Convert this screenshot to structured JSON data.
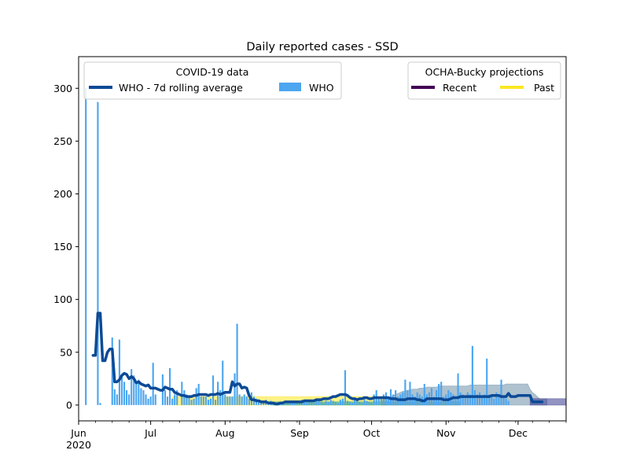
{
  "chart_data": {
    "type": "bar",
    "title": "Daily reported cases - SSD",
    "xlabel": "",
    "ylabel": "",
    "ylim": [
      -15,
      330
    ],
    "xlim": [
      "2020-06-01",
      "2020-12-21"
    ],
    "yticks": [
      0,
      50,
      100,
      150,
      200,
      250,
      300
    ],
    "xticks": [
      {
        "date": "2020-06-01",
        "label": "Jun",
        "sublabel": "2020"
      },
      {
        "date": "2020-07-01",
        "label": "Jul",
        "sublabel": ""
      },
      {
        "date": "2020-08-01",
        "label": "Aug",
        "sublabel": ""
      },
      {
        "date": "2020-09-01",
        "label": "Sep",
        "sublabel": ""
      },
      {
        "date": "2020-10-01",
        "label": "Oct",
        "sublabel": ""
      },
      {
        "date": "2020-11-01",
        "label": "Nov",
        "sublabel": ""
      },
      {
        "date": "2020-12-01",
        "label": "Dec",
        "sublabel": ""
      }
    ],
    "legends": [
      {
        "title": "COVID-19 data",
        "placement": "upper-left",
        "entries": [
          {
            "label": "WHO - 7d rolling average",
            "kind": "line",
            "color": "#0b4a96"
          },
          {
            "label": "WHO",
            "kind": "patch",
            "color": "#4ca6f0"
          }
        ]
      },
      {
        "title": "OCHA-Bucky projections",
        "placement": "upper-right",
        "entries": [
          {
            "label": "Recent",
            "kind": "line",
            "color": "#440154"
          },
          {
            "label": "Past",
            "kind": "line",
            "color": "#fde725"
          }
        ]
      }
    ],
    "series": [
      {
        "name": "WHO",
        "kind": "bar",
        "color": "#4ca6f0",
        "start": "2020-06-01",
        "values": [
          0,
          0,
          0,
          300,
          0,
          0,
          0,
          0,
          287,
          2,
          0,
          0,
          0,
          0,
          64,
          15,
          10,
          62,
          28,
          22,
          14,
          10,
          34,
          28,
          20,
          24,
          16,
          14,
          10,
          6,
          8,
          40,
          10,
          0,
          0,
          29,
          14,
          8,
          35,
          6,
          10,
          14,
          0,
          22,
          14,
          10,
          8,
          5,
          6,
          16,
          20,
          8,
          8,
          8,
          5,
          6,
          28,
          5,
          22,
          14,
          42,
          10,
          8,
          8,
          8,
          30,
          77,
          10,
          8,
          10,
          8,
          6,
          12,
          8,
          6,
          5,
          4,
          3,
          5,
          2,
          4,
          3,
          2,
          2,
          1,
          3,
          2,
          4,
          2,
          3,
          2,
          4,
          3,
          5,
          3,
          2,
          4,
          3,
          2,
          5,
          4,
          3,
          2,
          4,
          3,
          5,
          4,
          3,
          2,
          5,
          6,
          33,
          4,
          3,
          2,
          5,
          4,
          3,
          2,
          6,
          4,
          3,
          2,
          10,
          14,
          6,
          8,
          10,
          12,
          8,
          15,
          10,
          14,
          8,
          10,
          12,
          24,
          14,
          22,
          10,
          8,
          12,
          10,
          8,
          20,
          10,
          12,
          16,
          8,
          14,
          20,
          22,
          8,
          10,
          14,
          12,
          10,
          8,
          30,
          12,
          10,
          8,
          12,
          10,
          56,
          14,
          10,
          12,
          8,
          10,
          44,
          10,
          8,
          6,
          12,
          8,
          24,
          8,
          6,
          4
        ]
      },
      {
        "name": "WHO - 7d rolling average",
        "kind": "line",
        "color": "#0b4a96",
        "start": "2020-06-01",
        "values": [
          null,
          null,
          null,
          null,
          null,
          null,
          47,
          47,
          87,
          87,
          42,
          42,
          50,
          53,
          53,
          22,
          22,
          24,
          28,
          30,
          29,
          25,
          27,
          25,
          21,
          22,
          20,
          19,
          18,
          19,
          16,
          16,
          16,
          15,
          14,
          14,
          17,
          16,
          15,
          15,
          12,
          11,
          10,
          9,
          9,
          8,
          8,
          8,
          9,
          9,
          10,
          10,
          10,
          10,
          9,
          10,
          10,
          10,
          11,
          10,
          11,
          12,
          12,
          12,
          22,
          18,
          20,
          20,
          16,
          17,
          16,
          9,
          5,
          5,
          4,
          4,
          3,
          3,
          3,
          2,
          2,
          2,
          1,
          1,
          2,
          2,
          3,
          3,
          3,
          3,
          3,
          3,
          3,
          3,
          4,
          4,
          4,
          4,
          4,
          5,
          5,
          5,
          6,
          6,
          6,
          7,
          8,
          8,
          9,
          10,
          10,
          10,
          9,
          7,
          6,
          6,
          5,
          6,
          6,
          7,
          7,
          6,
          6,
          7,
          7,
          7,
          7,
          7,
          7,
          7,
          6,
          6,
          6,
          5,
          5,
          5,
          5,
          6,
          6,
          6,
          6,
          5,
          5,
          4,
          4,
          6,
          6,
          6,
          6,
          6,
          6,
          6,
          5,
          5,
          5,
          6,
          7,
          7,
          7,
          8,
          8,
          8,
          8,
          8,
          8,
          8,
          8,
          8,
          8,
          8,
          8,
          8,
          9,
          9,
          9,
          9,
          8,
          8,
          8,
          11,
          8,
          8,
          8,
          9,
          9,
          9,
          9,
          9,
          9,
          3,
          3,
          3,
          3,
          3
        ]
      },
      {
        "name": "",
        "kind": "band",
        "color": "#fde725",
        "start": "2020-07-10",
        "lower": [
          0,
          0,
          0,
          0,
          0,
          0,
          0,
          0,
          0,
          0,
          0,
          0,
          0,
          0,
          0,
          0,
          0,
          0,
          0,
          0,
          0,
          0,
          0,
          0,
          0,
          0,
          0,
          0,
          0,
          0,
          0,
          0,
          0,
          0,
          0,
          0,
          0,
          0,
          0,
          0,
          0,
          0,
          0,
          0,
          0,
          0,
          0,
          0,
          0,
          0,
          0,
          0,
          0,
          0,
          0,
          0,
          0,
          0,
          0,
          0,
          0,
          0,
          0,
          0,
          0,
          0,
          0,
          0,
          0,
          0,
          0,
          0,
          0,
          0,
          0,
          0,
          0,
          0,
          0,
          0,
          0,
          0,
          0,
          0,
          0,
          0,
          0,
          0,
          0,
          0
        ],
        "upper": [
          8,
          8,
          8,
          8,
          8,
          8,
          8,
          8,
          8,
          8,
          8,
          8,
          8,
          8,
          8,
          8,
          8,
          8,
          8,
          8,
          8,
          8,
          8,
          8,
          8,
          8,
          8,
          8,
          8,
          8,
          8,
          8,
          8,
          8,
          8,
          8,
          8,
          8,
          8,
          8,
          8,
          8,
          8,
          8,
          8,
          8,
          8,
          8,
          8,
          8,
          8,
          8,
          8,
          8,
          8,
          8,
          8,
          8,
          8,
          8,
          8,
          8,
          8,
          8,
          8,
          8,
          8,
          8,
          8,
          8,
          8,
          8,
          8,
          8,
          8,
          8,
          8,
          8,
          8,
          8,
          8,
          8,
          8,
          8,
          8,
          8,
          8,
          8,
          8,
          8
        ]
      },
      {
        "name": "",
        "kind": "band",
        "color": "#21a585",
        "start": "2020-08-20",
        "lower": [
          0,
          0,
          0,
          0,
          0,
          0,
          0,
          0,
          0,
          0,
          0,
          0,
          0,
          0,
          0,
          0,
          0,
          0,
          0,
          0,
          0,
          0,
          0,
          0,
          0,
          0,
          0,
          0,
          0,
          0,
          0,
          0,
          0,
          0,
          0,
          0,
          0,
          0,
          0,
          0,
          0,
          0,
          0,
          0,
          0,
          0,
          0,
          0,
          0,
          0,
          0,
          0,
          0,
          0,
          0,
          0,
          0,
          0,
          0,
          0,
          0,
          0,
          0,
          0,
          0,
          0,
          0,
          0,
          0,
          0,
          0,
          0,
          0,
          0,
          0,
          0,
          0,
          0,
          0,
          0
        ],
        "upper": [
          3,
          3,
          3,
          3,
          3,
          3,
          3,
          3,
          3,
          3,
          3,
          3,
          3,
          3,
          3,
          3,
          3,
          3,
          3,
          3,
          3,
          3,
          3,
          3,
          3,
          3,
          3,
          3,
          3,
          3,
          3,
          3,
          3,
          3,
          3,
          3,
          3,
          3,
          3,
          3,
          3,
          3,
          3,
          3,
          3,
          3,
          3,
          3,
          3,
          3,
          3,
          3,
          3,
          3,
          3,
          3,
          3,
          3,
          3,
          3,
          3,
          3,
          3,
          3,
          3,
          3,
          3,
          3,
          3,
          3,
          3,
          3,
          3,
          3,
          3,
          3,
          3,
          3,
          3,
          3
        ]
      },
      {
        "name": "",
        "kind": "band",
        "color": "#6b8fa8",
        "start": "2020-10-05",
        "lower": [
          0,
          0,
          0,
          0,
          0,
          0,
          0,
          0,
          0,
          0,
          0,
          0,
          0,
          0,
          0,
          0,
          0,
          0,
          0,
          0,
          0,
          0,
          0,
          0,
          0,
          0,
          0,
          0,
          0,
          0,
          0,
          0,
          0,
          0,
          0,
          0,
          0,
          0,
          0,
          0,
          0,
          0,
          0,
          0,
          0,
          0,
          0,
          0,
          0,
          0,
          0,
          0,
          0,
          0,
          0,
          0,
          0,
          0,
          0,
          0,
          0,
          0,
          0,
          0,
          0,
          0,
          0,
          0,
          0,
          0
        ],
        "upper": [
          4,
          5,
          6,
          7,
          8,
          9,
          10,
          11,
          12,
          13,
          13,
          14,
          14,
          15,
          15,
          15,
          16,
          16,
          16,
          17,
          17,
          17,
          17,
          17,
          18,
          18,
          18,
          18,
          18,
          18,
          18,
          18,
          18,
          18,
          18,
          18,
          18,
          19,
          19,
          19,
          19,
          19,
          19,
          19,
          19,
          19,
          19,
          19,
          19,
          19,
          19,
          19,
          20,
          20,
          20,
          20,
          20,
          20,
          20,
          20,
          20,
          20,
          15,
          12,
          10,
          8,
          6,
          6,
          6,
          6
        ]
      },
      {
        "name": "",
        "kind": "band",
        "color": "#3b3b8f",
        "start": "2020-12-06",
        "lower": [
          0,
          0,
          0,
          0,
          0,
          0,
          0,
          0,
          0,
          0,
          0,
          0,
          0,
          0,
          0,
          0
        ],
        "upper": [
          6,
          6,
          6,
          6,
          6,
          6,
          6,
          6,
          6,
          6,
          6,
          6,
          6,
          6,
          6,
          6
        ]
      }
    ]
  }
}
